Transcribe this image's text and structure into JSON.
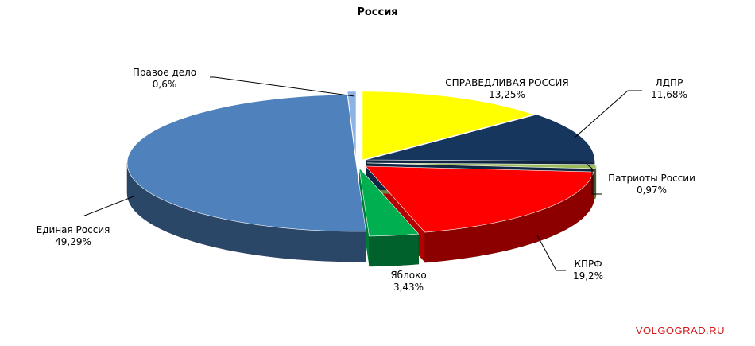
{
  "chart_data": {
    "type": "pie",
    "title": "Россия",
    "slices": [
      {
        "label": "СПРАВЕДЛИВАЯ РОССИЯ",
        "value": 13.25,
        "display": "13,25%",
        "color": "#ffff00"
      },
      {
        "label": "ЛДПР",
        "value": 11.68,
        "display": "11,68%",
        "color": "#17365d"
      },
      {
        "label": "Патриоты России",
        "value": 0.97,
        "display": "0,97%",
        "color": "#9bbb59"
      },
      {
        "label": "КПРФ",
        "value": 19.2,
        "display": "19,2%",
        "color": "#ff0000"
      },
      {
        "label": "Яблоко",
        "value": 3.43,
        "display": "3,43%",
        "color": "#00b050"
      },
      {
        "label": "Единая Россия",
        "value": 49.29,
        "display": "49,29%",
        "color": "#4f81bd"
      },
      {
        "label": "Правое дело",
        "value": 0.6,
        "display": "0,6%",
        "color": "#8db3e2"
      }
    ],
    "style": "3d-exploded",
    "legend": "none",
    "data_labels": "outside-with-leader-lines"
  },
  "watermark": "VOLGOGRAD.RU"
}
